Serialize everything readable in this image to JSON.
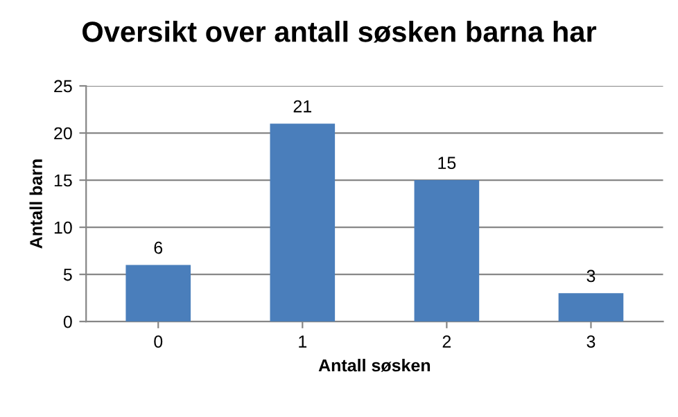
{
  "chart_data": {
    "type": "bar",
    "title": "Oversikt over antall søsken barna har",
    "xlabel": "Antall søsken",
    "ylabel": "Antall barn",
    "categories": [
      "0",
      "1",
      "2",
      "3"
    ],
    "values": [
      6,
      21,
      15,
      3
    ],
    "color": "#4a7ebb",
    "ylim": [
      0,
      25
    ],
    "yticks": [
      0,
      5,
      10,
      15,
      20,
      25
    ],
    "grid": "y",
    "data_labels": true
  }
}
